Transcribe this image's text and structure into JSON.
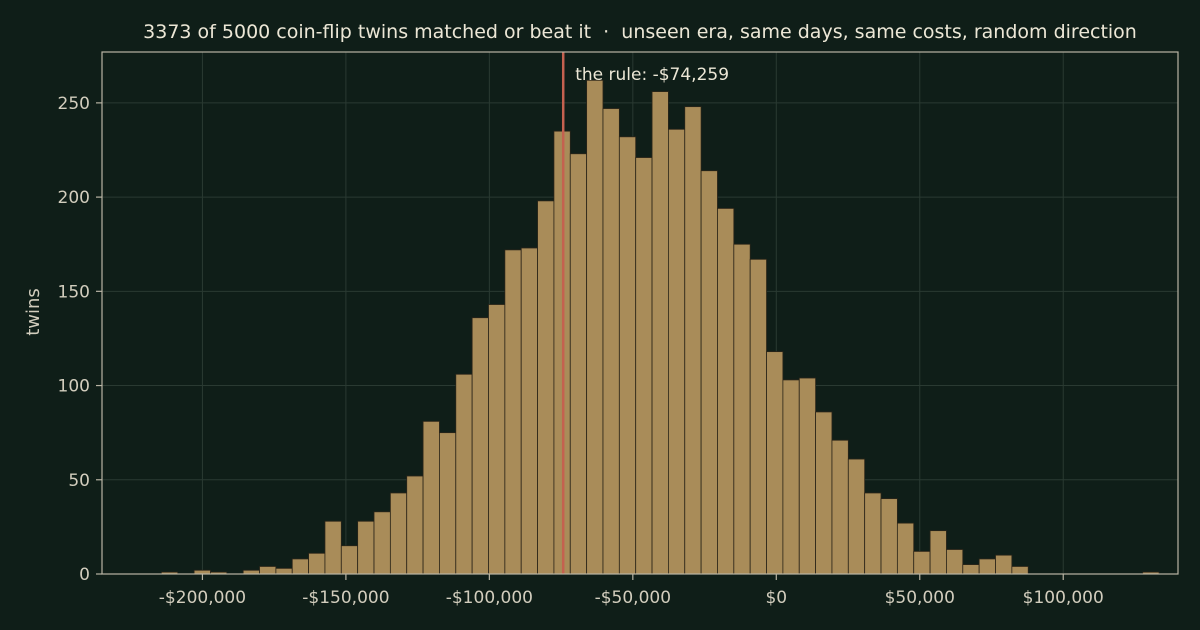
{
  "chart_data": {
    "type": "bar",
    "title": "3373 of 5000 coin-flip twins matched or beat it  ·  unseen era, same days, same costs, random direction",
    "xlabel": "",
    "ylabel": "twins",
    "xlim": [
      -235000,
      140000
    ],
    "ylim": [
      0,
      277
    ],
    "grid": true,
    "bin_start": -220000,
    "bin_width": 5700,
    "counts": [
      0,
      1,
      0,
      2,
      1,
      0,
      2,
      4,
      3,
      8,
      11,
      28,
      15,
      28,
      33,
      43,
      52,
      81,
      75,
      106,
      136,
      143,
      172,
      173,
      198,
      235,
      223,
      262,
      247,
      232,
      221,
      256,
      236,
      248,
      214,
      194,
      175,
      167,
      118,
      103,
      104,
      86,
      71,
      61,
      43,
      40,
      27,
      12,
      23,
      13,
      5,
      8,
      10,
      4,
      0,
      0,
      0,
      0,
      0,
      0,
      0,
      1
    ],
    "x_ticks": [
      {
        "value": -200000,
        "label": "-$200,000"
      },
      {
        "value": -150000,
        "label": "-$150,000"
      },
      {
        "value": -100000,
        "label": "-$100,000"
      },
      {
        "value": -50000,
        "label": "-$50,000"
      },
      {
        "value": 0,
        "label": "$0"
      },
      {
        "value": 50000,
        "label": "$50,000"
      },
      {
        "value": 100000,
        "label": "$100,000"
      }
    ],
    "y_ticks": [
      {
        "value": 0,
        "label": "0"
      },
      {
        "value": 50,
        "label": "50"
      },
      {
        "value": 100,
        "label": "100"
      },
      {
        "value": 150,
        "label": "150"
      },
      {
        "value": 200,
        "label": "200"
      },
      {
        "value": 250,
        "label": "250"
      }
    ],
    "reference_line": {
      "value": -74259,
      "label": "the rule: -$74,259"
    },
    "colors": {
      "background": "#0f1e18",
      "bar_fill": "#a98c59",
      "bar_edge": "#2a2418",
      "reference_line": "#c4614f",
      "grid": "#2a3a32",
      "axis": "#b9b4a4"
    }
  }
}
